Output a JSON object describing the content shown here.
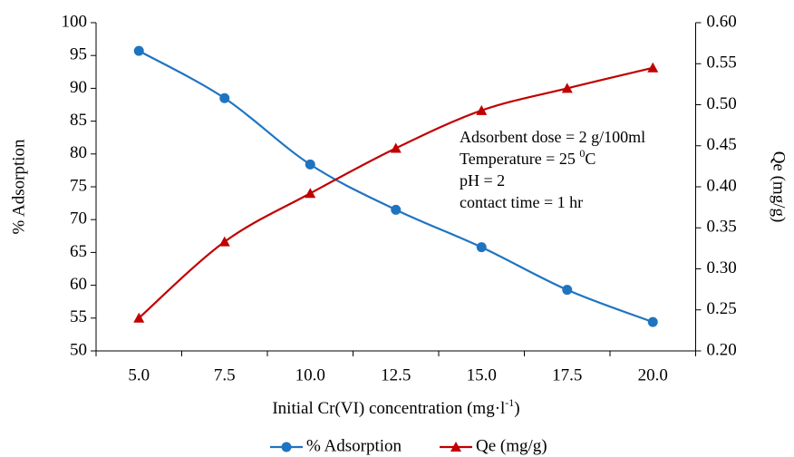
{
  "chart_data": {
    "type": "line",
    "xlabel": "Initial Cr(VI) concentration (mg·l",
    "xlabel_sup": "-1",
    "xlabel_end": ")",
    "ylabel": "% Adsorption",
    "y2label": "Qe (mg/g)",
    "categories": [
      "5.0",
      "7.5",
      "10.0",
      "12.5",
      "15.0",
      "17.5",
      "20.0"
    ],
    "series": [
      {
        "name": "% Adsorption",
        "color": "#1f74c0",
        "marker": "circle",
        "values": [
          95.7,
          88.5,
          78.4,
          71.5,
          65.8,
          59.3,
          54.4
        ]
      },
      {
        "name": "Qe (mg/g)",
        "color": "#c00000",
        "marker": "triangle",
        "axis": "y2",
        "values": [
          0.24,
          0.333,
          0.392,
          0.447,
          0.493,
          0.52,
          0.545
        ]
      }
    ],
    "ylim": [
      50,
      100
    ],
    "yticks": [
      50,
      55,
      60,
      65,
      70,
      75,
      80,
      85,
      90,
      95,
      100
    ],
    "y2lim": [
      0.2,
      0.6
    ],
    "y2ticks": [
      {
        "value": 0.2,
        "label": "0.20"
      },
      0.25,
      {
        "value": 0.3,
        "label": "0.30"
      },
      0.35,
      {
        "value": 0.4,
        "label": "0.40"
      },
      0.45,
      {
        "value": 0.5,
        "label": "0.50"
      },
      0.55,
      {
        "value": 0.6,
        "label": "0.60"
      }
    ],
    "annotations": [
      {
        "text": "Adsorbent dose = 2 g/100ml"
      },
      {
        "text": "Temperature = 25 ",
        "sup": "0",
        "end": "C"
      },
      {
        "text": "pH = 2"
      },
      {
        "text": "contact time = 1 hr"
      }
    ],
    "grid": false,
    "legend": "bottom"
  }
}
